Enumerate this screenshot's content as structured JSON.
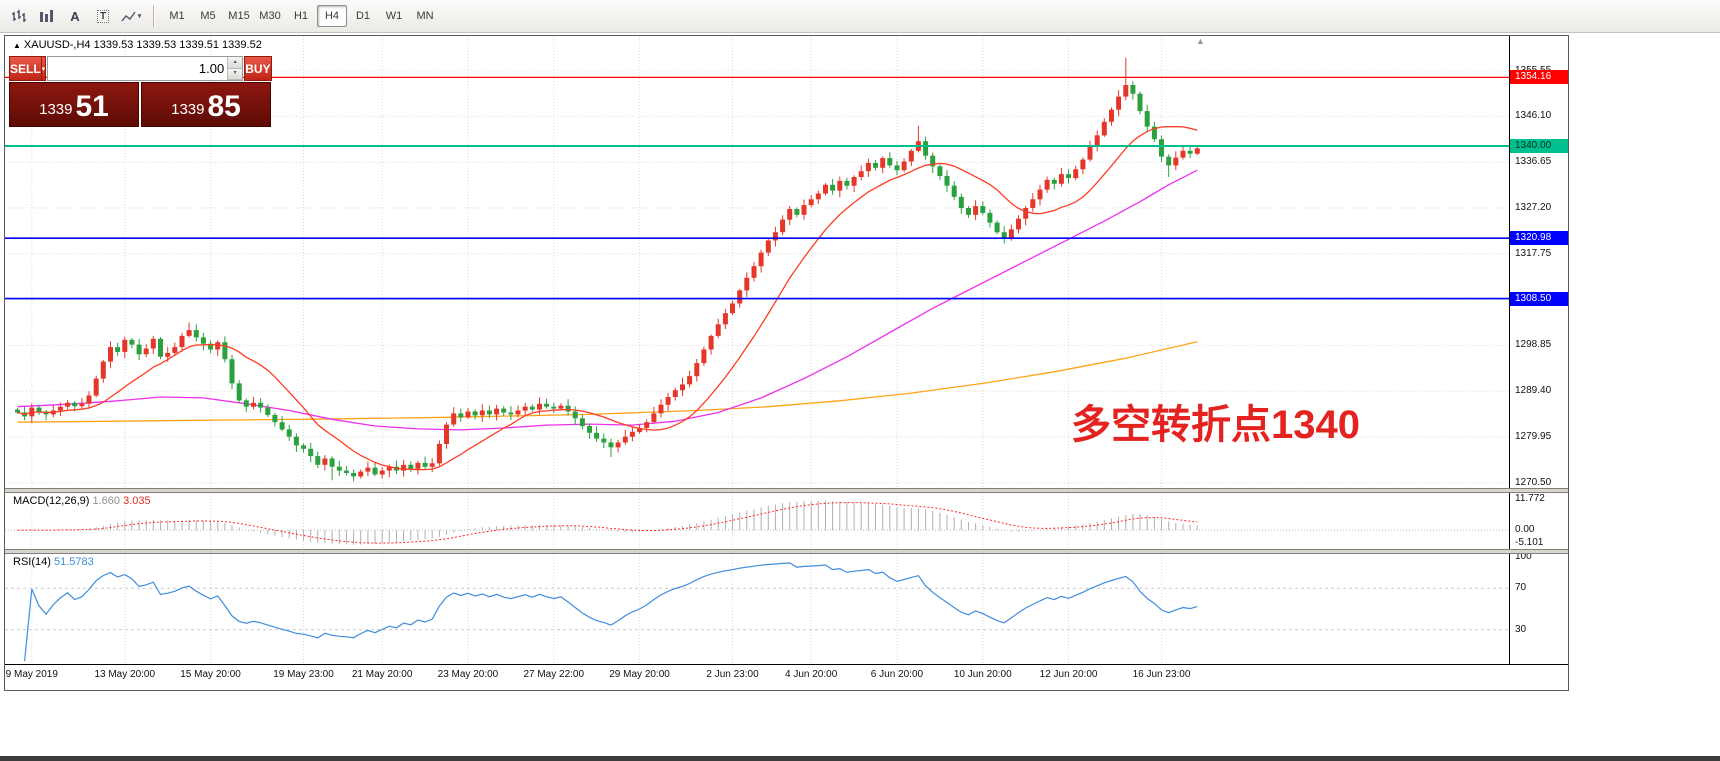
{
  "ui_glyphs": {
    "caret_down": "▾",
    "caret_up": "▴",
    "shift_marker": "▲",
    "symbol_marker": "▲"
  },
  "toolbar": {
    "tools": [
      {
        "name": "bar-chart-tool"
      },
      {
        "name": "grid-columns-tool"
      },
      {
        "name": "text-tool",
        "glyph": "A"
      },
      {
        "name": "label-tool",
        "glyph": "T"
      },
      {
        "name": "line-studies-tool"
      }
    ],
    "timeframes": [
      {
        "label": "M1",
        "active": false
      },
      {
        "label": "M5",
        "active": false
      },
      {
        "label": "M15",
        "active": false
      },
      {
        "label": "M30",
        "active": false
      },
      {
        "label": "H1",
        "active": false
      },
      {
        "label": "H4",
        "active": true
      },
      {
        "label": "D1",
        "active": false
      },
      {
        "label": "W1",
        "active": false
      },
      {
        "label": "MN",
        "active": false
      }
    ]
  },
  "one_click": {
    "sell_label": "SELL",
    "buy_label": "BUY",
    "volume": "1.00",
    "bid_main": "1339",
    "bid_pips": "51",
    "ask_main": "1339",
    "ask_pips": "85"
  },
  "chart": {
    "ohlc_text": "XAUUSD-,H4 1339.53 1339.53 1339.51 1339.52",
    "annotation_text": "多空转折点1340"
  },
  "chart_data": {
    "type": "candlestick",
    "symbol": "XAUUSD-",
    "timeframe": "H4",
    "ohlc_readout": {
      "open": "1339.53",
      "high": "1339.53",
      "low": "1339.51",
      "close": "1339.52"
    },
    "colors": {
      "up": "#e4372a",
      "down": "#2aa13e",
      "ma_fast": "#ff3d23",
      "ma_mid": "#ee30ee",
      "ma_slow": "#ffa319",
      "grid": "#dcdcdc"
    },
    "price_axis": {
      "labels": [
        "1355.55",
        "1346.10",
        "1336.65",
        "1327.20",
        "1317.75",
        "1308.30",
        "1298.85",
        "1289.40",
        "1279.95",
        "1270.50"
      ]
    },
    "hlines": [
      {
        "price": 1354.16,
        "label": "1354.16",
        "color": "#ff0000",
        "text_color": "#ffffff",
        "width": 1.2
      },
      {
        "price": 1340.0,
        "label": "1340.00",
        "color": "#00bf8f",
        "text_color": "#00321f",
        "width": 2
      },
      {
        "price": 1320.98,
        "label": "1320.98",
        "color": "#0000ff",
        "text_color": "#ffffff",
        "width": 1.6
      },
      {
        "price": 1308.5,
        "label": "1308.50",
        "color": "#0000ff",
        "text_color": "#ffffff",
        "width": 1.6
      }
    ],
    "x_labels": [
      {
        "label": "9 May 2019",
        "i": 2
      },
      {
        "label": "13 May 20:00",
        "i": 15
      },
      {
        "label": "15 May 20:00",
        "i": 27
      },
      {
        "label": "19 May 23:00",
        "i": 40
      },
      {
        "label": "21 May 20:00",
        "i": 51
      },
      {
        "label": "23 May 20:00",
        "i": 63
      },
      {
        "label": "27 May 22:00",
        "i": 75
      },
      {
        "label": "29 May 20:00",
        "i": 87
      },
      {
        "label": "2 Jun 23:00",
        "i": 100
      },
      {
        "label": "4 Jun 20:00",
        "i": 111
      },
      {
        "label": "6 Jun 20:00",
        "i": 123
      },
      {
        "label": "10 Jun 20:00",
        "i": 135
      },
      {
        "label": "12 Jun 20:00",
        "i": 147
      },
      {
        "label": "16 Jun 23:00",
        "i": 160
      }
    ],
    "candles": {
      "closes": [
        1285.0,
        1284.2,
        1286.0,
        1285.2,
        1284.6,
        1285.4,
        1286.2,
        1287.0,
        1286.3,
        1286.8,
        1288.5,
        1292.0,
        1295.5,
        1298.5,
        1297.5,
        1300.0,
        1299.0,
        1297.0,
        1298.2,
        1300.2,
        1296.5,
        1297.3,
        1298.5,
        1300.8,
        1302.0,
        1300.5,
        1299.2,
        1298.0,
        1299.5,
        1296.0,
        1291.0,
        1287.5,
        1286.2,
        1287.0,
        1286.0,
        1284.5,
        1283.0,
        1281.5,
        1280.0,
        1278.2,
        1277.5,
        1276.0,
        1274.2,
        1275.5,
        1273.8,
        1273.0,
        1272.5,
        1271.8,
        1272.8,
        1273.6,
        1272.2,
        1273.0,
        1273.8,
        1273.0,
        1274.2,
        1273.4,
        1274.6,
        1273.8,
        1274.5,
        1278.5,
        1282.5,
        1284.8,
        1284.0,
        1285.2,
        1284.4,
        1285.4,
        1284.6,
        1285.8,
        1285.0,
        1284.6,
        1285.4,
        1286.2,
        1285.6,
        1286.8,
        1286.2,
        1285.8,
        1286.4,
        1285.2,
        1283.8,
        1282.2,
        1280.8,
        1279.6,
        1278.8,
        1277.8,
        1278.8,
        1280.0,
        1281.0,
        1281.8,
        1283.0,
        1284.8,
        1286.6,
        1288.2,
        1289.6,
        1290.8,
        1292.5,
        1295.2,
        1298.0,
        1300.8,
        1303.2,
        1305.5,
        1307.5,
        1310.2,
        1312.8,
        1315.2,
        1318.0,
        1320.5,
        1322.2,
        1324.8,
        1327.0,
        1325.8,
        1327.8,
        1329.0,
        1330.2,
        1332.0,
        1330.8,
        1332.8,
        1331.8,
        1333.6,
        1334.8,
        1336.5,
        1335.5,
        1337.5,
        1336.0,
        1335.0,
        1336.8,
        1339.0,
        1341.0,
        1338.0,
        1335.8,
        1333.8,
        1331.8,
        1329.5,
        1327.2,
        1325.8,
        1327.6,
        1326.2,
        1324.2,
        1322.2,
        1320.8,
        1322.8,
        1325.0,
        1327.2,
        1329.0,
        1331.0,
        1333.0,
        1332.2,
        1334.2,
        1333.4,
        1335.2,
        1337.2,
        1339.8,
        1342.2,
        1345.0,
        1347.5,
        1350.2,
        1352.6,
        1350.8,
        1347.2,
        1344.0,
        1341.4,
        1337.8,
        1336.0,
        1337.6,
        1339.0,
        1338.4,
        1339.5
      ],
      "wick_overrides": {
        "24": [
          1303.6,
          null
        ],
        "44": [
          null,
          1271.0
        ],
        "83": [
          null,
          1275.8
        ],
        "126": [
          1344.2,
          null
        ],
        "155": [
          1358.2,
          null
        ],
        "161": [
          null,
          1333.6
        ]
      }
    },
    "ma_mid_waypoints": [
      [
        0,
        1286.2
      ],
      [
        8,
        1286.8
      ],
      [
        14,
        1287.4
      ],
      [
        20,
        1288.2
      ],
      [
        26,
        1288.0
      ],
      [
        32,
        1286.8
      ],
      [
        38,
        1285.4
      ],
      [
        44,
        1283.6
      ],
      [
        50,
        1282.2
      ],
      [
        56,
        1281.6
      ],
      [
        62,
        1281.4
      ],
      [
        68,
        1281.8
      ],
      [
        74,
        1282.4
      ],
      [
        80,
        1282.6
      ],
      [
        86,
        1282.4
      ],
      [
        92,
        1283.2
      ],
      [
        98,
        1285.0
      ],
      [
        104,
        1288.0
      ],
      [
        110,
        1292.0
      ],
      [
        116,
        1296.5
      ],
      [
        122,
        1301.5
      ],
      [
        128,
        1306.5
      ],
      [
        134,
        1311.0
      ],
      [
        140,
        1315.5
      ],
      [
        146,
        1320.0
      ],
      [
        152,
        1324.5
      ],
      [
        157,
        1328.5
      ],
      [
        161,
        1332.0
      ],
      [
        165,
        1335.0
      ]
    ],
    "ma_slow_waypoints": [
      [
        0,
        1283.0
      ],
      [
        20,
        1283.3
      ],
      [
        40,
        1283.6
      ],
      [
        60,
        1284.0
      ],
      [
        80,
        1284.6
      ],
      [
        95,
        1285.4
      ],
      [
        105,
        1286.2
      ],
      [
        115,
        1287.4
      ],
      [
        125,
        1289.0
      ],
      [
        135,
        1291.0
      ],
      [
        145,
        1293.4
      ],
      [
        155,
        1296.2
      ],
      [
        165,
        1299.6
      ]
    ],
    "macd": {
      "name": "MACD(12,26,9)",
      "value_main": "1.660",
      "value_signal": "3.035",
      "params": [
        12,
        26,
        9
      ],
      "axis_labels": [
        "11.772",
        "0.00",
        "-5.101"
      ],
      "axis_max": 11.772,
      "axis_min": -5.101,
      "colors": {
        "hist": "#b0aeae",
        "signal": "#ff2a2a"
      }
    },
    "rsi": {
      "name": "RSI(14)",
      "value": "51.5783",
      "period": 14,
      "axis_labels": [
        "100",
        "70",
        "30"
      ],
      "levels": [
        70,
        30
      ],
      "color": "#3f8edc"
    }
  }
}
